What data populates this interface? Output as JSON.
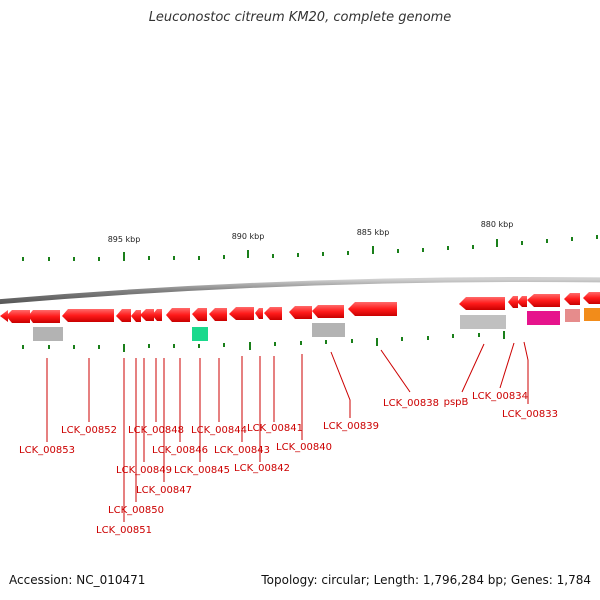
{
  "header": {
    "title": "Leuconostoc citreum KM20, complete genome"
  },
  "footer": {
    "accession": "Accession: NC_010471",
    "stats": "Topology: circular; Length: 1,796,284 bp; Genes: 1,784"
  },
  "ruler": {
    "kbp_labels": [
      "895 kbp",
      "890 kbp",
      "885 kbp",
      "880 kbp"
    ]
  },
  "genes": [
    "LCK_00853",
    "LCK_00852",
    "LCK_00851",
    "LCK_00850",
    "LCK_00849",
    "LCK_00848",
    "LCK_00847",
    "LCK_00846",
    "LCK_00845",
    "LCK_00844",
    "LCK_00843",
    "LCK_00842",
    "LCK_00841",
    "LCK_00840",
    "LCK_00839",
    "LCK_00838",
    "pspB",
    "LCK_00834",
    "LCK_00833"
  ],
  "colors": {
    "gene_arrow": "#ff1a1a",
    "backbone": "#8c8c8c",
    "tick": "#1a7f1a",
    "label": "#cc0000",
    "feature_gray": "#b3b3b3",
    "feature_teal": "#1ad98c",
    "feature_magenta": "#e6148c",
    "feature_pink": "#e68c8c",
    "feature_orange": "#f28c1a"
  }
}
